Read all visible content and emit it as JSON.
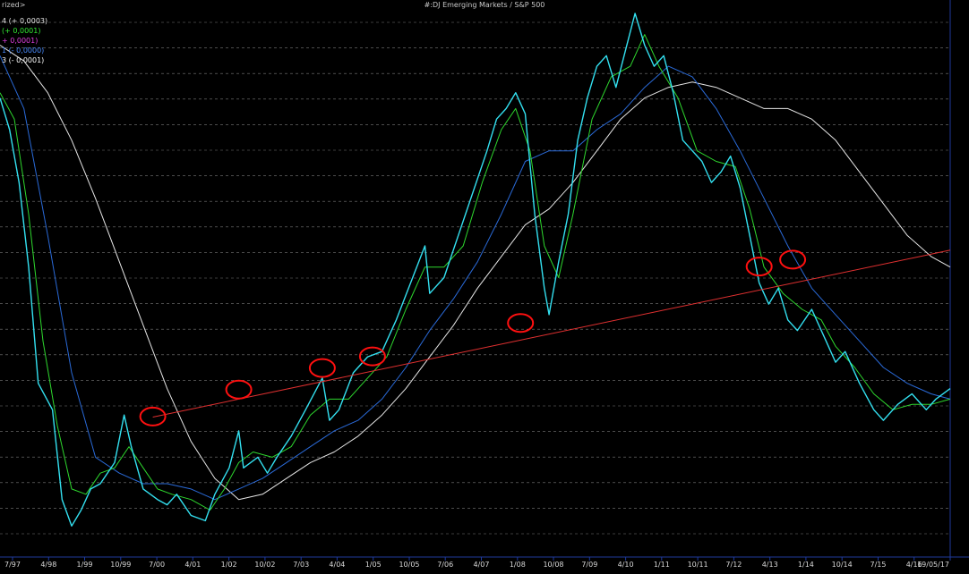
{
  "top_left_label": "rized>",
  "legend": [
    {
      "text": "4 (+ 0,0003)",
      "color": "#e8e8e8"
    },
    {
      "text": " (+ 0,0001)",
      "color": "#33e833"
    },
    {
      "text": "+ 0,0001)",
      "color": "#e040e0"
    },
    {
      "text": "1 (- 0,0000)",
      "color": "#4a8cff"
    },
    {
      "text": "3 (- 0,0001)",
      "color": "#ffffff"
    }
  ],
  "colors": {
    "background": "#000000",
    "price": "#33e0f0",
    "ma_short": "#2ed82e",
    "ma_medium": "#2a6ad8",
    "ma_long": "#e6e6e6",
    "trendline": "#e03030",
    "circles": "#ff1010",
    "grid": "#7a7a7a",
    "axis_text": "#d8d8d8"
  },
  "chart_data": {
    "type": "line",
    "title": "#:DJ Emerging Markets / S&P 500",
    "x_ticks": [
      "7/97",
      "4/98",
      "1/99",
      "10/99",
      "7/00",
      "4/01",
      "1/02",
      "10/02",
      "7/03",
      "4/04",
      "1/05",
      "10/05",
      "7/06",
      "4/07",
      "1/08",
      "10/08",
      "7/09",
      "4/10",
      "1/11",
      "10/11",
      "7/12",
      "4/13",
      "1/14",
      "10/14",
      "7/15",
      "4/16",
      "19/05/17"
    ],
    "x_range": [
      1997.5,
      2017.4
    ],
    "y_scale": "relative",
    "y_range": [
      0,
      100
    ],
    "grid": "horizontal dashed",
    "series": [
      {
        "key": "price",
        "points": [
          [
            1997.5,
            84
          ],
          [
            1997.7,
            78
          ],
          [
            1997.9,
            68
          ],
          [
            1998.1,
            52
          ],
          [
            1998.3,
            30
          ],
          [
            1998.6,
            25
          ],
          [
            1998.8,
            8
          ],
          [
            1999.0,
            3
          ],
          [
            1999.2,
            6
          ],
          [
            1999.4,
            10
          ],
          [
            1999.6,
            11
          ],
          [
            1999.9,
            15
          ],
          [
            2000.1,
            24
          ],
          [
            2000.25,
            18
          ],
          [
            2000.5,
            10
          ],
          [
            2000.8,
            8
          ],
          [
            2001.0,
            7
          ],
          [
            2001.2,
            9
          ],
          [
            2001.5,
            5
          ],
          [
            2001.8,
            4
          ],
          [
            2002.0,
            9
          ],
          [
            2002.3,
            14
          ],
          [
            2002.5,
            21
          ],
          [
            2002.6,
            14
          ],
          [
            2002.9,
            16
          ],
          [
            2003.1,
            13
          ],
          [
            2003.3,
            16
          ],
          [
            2003.6,
            20
          ],
          [
            2003.9,
            25
          ],
          [
            2004.25,
            31
          ],
          [
            2004.4,
            23
          ],
          [
            2004.6,
            25
          ],
          [
            2004.9,
            32
          ],
          [
            2005.2,
            35
          ],
          [
            2005.5,
            36
          ],
          [
            2005.8,
            42
          ],
          [
            2006.1,
            49
          ],
          [
            2006.4,
            56
          ],
          [
            2006.5,
            47
          ],
          [
            2006.8,
            50
          ],
          [
            2007.1,
            58
          ],
          [
            2007.4,
            66
          ],
          [
            2007.7,
            74
          ],
          [
            2007.9,
            80
          ],
          [
            2008.1,
            82
          ],
          [
            2008.3,
            85
          ],
          [
            2008.5,
            81
          ],
          [
            2008.7,
            62
          ],
          [
            2008.9,
            48
          ],
          [
            2009.0,
            43
          ],
          [
            2009.2,
            53
          ],
          [
            2009.4,
            62
          ],
          [
            2009.6,
            76
          ],
          [
            2009.8,
            84
          ],
          [
            2010.0,
            90
          ],
          [
            2010.2,
            92
          ],
          [
            2010.4,
            86
          ],
          [
            2010.6,
            93
          ],
          [
            2010.8,
            100
          ],
          [
            2011.0,
            94
          ],
          [
            2011.2,
            90
          ],
          [
            2011.4,
            92
          ],
          [
            2011.6,
            85
          ],
          [
            2011.8,
            76
          ],
          [
            2012.0,
            74
          ],
          [
            2012.2,
            72
          ],
          [
            2012.4,
            68
          ],
          [
            2012.6,
            70
          ],
          [
            2012.8,
            73
          ],
          [
            2013.0,
            67
          ],
          [
            2013.2,
            58
          ],
          [
            2013.4,
            49
          ],
          [
            2013.6,
            45
          ],
          [
            2013.8,
            48
          ],
          [
            2014.0,
            42
          ],
          [
            2014.2,
            40
          ],
          [
            2014.5,
            44
          ],
          [
            2014.8,
            38
          ],
          [
            2015.0,
            34
          ],
          [
            2015.2,
            36
          ],
          [
            2015.5,
            30
          ],
          [
            2015.8,
            25
          ],
          [
            2016.0,
            23
          ],
          [
            2016.3,
            26
          ],
          [
            2016.6,
            28
          ],
          [
            2016.9,
            25
          ],
          [
            2017.1,
            27
          ],
          [
            2017.4,
            29
          ]
        ]
      },
      {
        "key": "ma_short",
        "points": [
          [
            1997.5,
            85
          ],
          [
            1997.8,
            80
          ],
          [
            1998.1,
            62
          ],
          [
            1998.4,
            38
          ],
          [
            1998.7,
            22
          ],
          [
            1999.0,
            10
          ],
          [
            1999.3,
            9
          ],
          [
            1999.6,
            13
          ],
          [
            1999.9,
            14
          ],
          [
            2000.2,
            18
          ],
          [
            2000.5,
            14
          ],
          [
            2000.8,
            10
          ],
          [
            2001.1,
            9
          ],
          [
            2001.5,
            8
          ],
          [
            2001.9,
            6
          ],
          [
            2002.2,
            10
          ],
          [
            2002.5,
            15
          ],
          [
            2002.8,
            17
          ],
          [
            2003.2,
            16
          ],
          [
            2003.6,
            18
          ],
          [
            2004.0,
            24
          ],
          [
            2004.4,
            27
          ],
          [
            2004.8,
            27
          ],
          [
            2005.2,
            31
          ],
          [
            2005.6,
            35
          ],
          [
            2006.0,
            44
          ],
          [
            2006.4,
            52
          ],
          [
            2006.8,
            52
          ],
          [
            2007.2,
            56
          ],
          [
            2007.6,
            68
          ],
          [
            2008.0,
            78
          ],
          [
            2008.3,
            82
          ],
          [
            2008.6,
            74
          ],
          [
            2008.9,
            56
          ],
          [
            2009.2,
            50
          ],
          [
            2009.5,
            62
          ],
          [
            2009.9,
            80
          ],
          [
            2010.3,
            88
          ],
          [
            2010.7,
            90
          ],
          [
            2011.0,
            96
          ],
          [
            2011.3,
            90
          ],
          [
            2011.7,
            84
          ],
          [
            2012.1,
            74
          ],
          [
            2012.5,
            72
          ],
          [
            2012.9,
            71
          ],
          [
            2013.2,
            63
          ],
          [
            2013.5,
            52
          ],
          [
            2013.9,
            47
          ],
          [
            2014.3,
            44
          ],
          [
            2014.7,
            42
          ],
          [
            2015.0,
            37
          ],
          [
            2015.4,
            33
          ],
          [
            2015.8,
            28
          ],
          [
            2016.2,
            25
          ],
          [
            2016.6,
            26
          ],
          [
            2017.0,
            26
          ],
          [
            2017.4,
            27
          ]
        ]
      },
      {
        "key": "ma_medium",
        "points": [
          [
            1997.5,
            92
          ],
          [
            1998.0,
            82
          ],
          [
            1998.5,
            58
          ],
          [
            1999.0,
            32
          ],
          [
            1999.5,
            16
          ],
          [
            2000.0,
            13
          ],
          [
            2000.5,
            11
          ],
          [
            2001.0,
            11
          ],
          [
            2001.5,
            10
          ],
          [
            2002.0,
            8
          ],
          [
            2002.5,
            10
          ],
          [
            2003.0,
            12
          ],
          [
            2003.5,
            15
          ],
          [
            2004.0,
            18
          ],
          [
            2004.5,
            21
          ],
          [
            2005.0,
            23
          ],
          [
            2005.5,
            27
          ],
          [
            2006.0,
            33
          ],
          [
            2006.5,
            40
          ],
          [
            2007.0,
            46
          ],
          [
            2007.5,
            53
          ],
          [
            2008.0,
            62
          ],
          [
            2008.5,
            72
          ],
          [
            2009.0,
            74
          ],
          [
            2009.5,
            74
          ],
          [
            2010.0,
            78
          ],
          [
            2010.5,
            81
          ],
          [
            2011.0,
            86
          ],
          [
            2011.5,
            90
          ],
          [
            2012.0,
            88
          ],
          [
            2012.5,
            82
          ],
          [
            2013.0,
            74
          ],
          [
            2013.5,
            65
          ],
          [
            2014.0,
            56
          ],
          [
            2014.5,
            48
          ],
          [
            2015.0,
            43
          ],
          [
            2015.5,
            38
          ],
          [
            2016.0,
            33
          ],
          [
            2016.5,
            30
          ],
          [
            2017.0,
            28
          ],
          [
            2017.4,
            27
          ]
        ]
      },
      {
        "key": "ma_long",
        "points": [
          [
            1997.5,
            94
          ],
          [
            1998.0,
            91
          ],
          [
            1998.5,
            85
          ],
          [
            1999.0,
            76
          ],
          [
            1999.5,
            65
          ],
          [
            2000.0,
            53
          ],
          [
            2000.5,
            41
          ],
          [
            2001.0,
            29
          ],
          [
            2001.5,
            19
          ],
          [
            2002.0,
            12
          ],
          [
            2002.5,
            8
          ],
          [
            2003.0,
            9
          ],
          [
            2003.5,
            12
          ],
          [
            2004.0,
            15
          ],
          [
            2004.5,
            17
          ],
          [
            2005.0,
            20
          ],
          [
            2005.5,
            24
          ],
          [
            2006.0,
            29
          ],
          [
            2006.5,
            35
          ],
          [
            2007.0,
            41
          ],
          [
            2007.5,
            48
          ],
          [
            2008.0,
            54
          ],
          [
            2008.5,
            60
          ],
          [
            2009.0,
            63
          ],
          [
            2009.5,
            68
          ],
          [
            2010.0,
            74
          ],
          [
            2010.5,
            80
          ],
          [
            2011.0,
            84
          ],
          [
            2011.5,
            86
          ],
          [
            2012.0,
            87
          ],
          [
            2012.5,
            86
          ],
          [
            2013.0,
            84
          ],
          [
            2013.5,
            82
          ],
          [
            2014.0,
            82
          ],
          [
            2014.5,
            80
          ],
          [
            2015.0,
            76
          ],
          [
            2015.5,
            70
          ],
          [
            2016.0,
            64
          ],
          [
            2016.5,
            58
          ],
          [
            2017.0,
            54
          ],
          [
            2017.4,
            52
          ]
        ]
      }
    ],
    "trendline": [
      [
        2000.7,
        23.6
      ],
      [
        2017.4,
        55.2
      ]
    ],
    "circles": [
      [
        2000.7,
        23.7
      ],
      [
        2002.5,
        28.8
      ],
      [
        2004.25,
        32.9
      ],
      [
        2005.3,
        35.1
      ],
      [
        2008.4,
        41.4
      ],
      [
        2013.4,
        52.1
      ],
      [
        2014.1,
        53.4
      ]
    ]
  }
}
